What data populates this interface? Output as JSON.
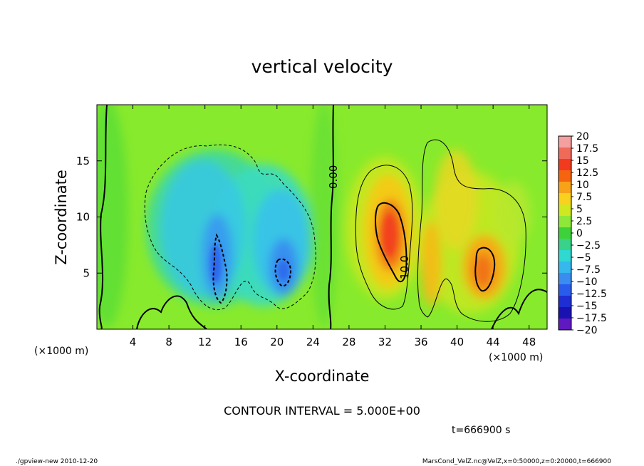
{
  "chart_data": {
    "type": "heatmap",
    "title": "vertical velocity",
    "xlabel": "X-coordinate",
    "ylabel": "Z-coordinate",
    "x_unit": "(×1000 m)",
    "x_unit_right": "(×1000 m)",
    "xlim": [
      0,
      50
    ],
    "ylim": [
      0,
      20
    ],
    "x_ticks": [
      "4",
      "8",
      "12",
      "16",
      "20",
      "24",
      "28",
      "32",
      "36",
      "40",
      "44",
      "48"
    ],
    "y_ticks": [
      "5",
      "10",
      "15"
    ],
    "colorbar_labels": [
      "20",
      "17.5",
      "15",
      "12.5",
      "10",
      "7.5",
      "5",
      "2.5",
      "0",
      "−2.5",
      "−5",
      "−7.5",
      "−10",
      "−12.5",
      "−15",
      "−17.5",
      "−20"
    ],
    "colorbar_colors": [
      "#f5a0a0",
      "#f06a5a",
      "#f23a1e",
      "#f66410",
      "#f8a21a",
      "#f8d21e",
      "#cfe820",
      "#8ee83a",
      "#3ed23a",
      "#38d28a",
      "#30d8d2",
      "#34b8ee",
      "#3a8cf0",
      "#2a5cec",
      "#1e2ed2",
      "#1a12b0",
      "#6018c0"
    ],
    "contour_labels": [
      "0.00",
      "10.0"
    ],
    "contour_interval_text": "CONTOUR INTERVAL = 5.000E+00",
    "time_text": "t=666900 s",
    "features": [
      {
        "kind": "downdraft",
        "x": 13.5,
        "z": 6.5,
        "value": -10
      },
      {
        "kind": "downdraft",
        "x": 20.8,
        "z": 5.3,
        "value": -10
      },
      {
        "kind": "updraft",
        "x": 32.5,
        "z": 8.5,
        "value": 12.5
      },
      {
        "kind": "updraft",
        "x": 43.5,
        "z": 5.3,
        "value": 10
      },
      {
        "kind": "updraft",
        "x": 37.0,
        "z": 5.5,
        "value": 7.5
      }
    ]
  },
  "footer": {
    "left": "./gpview-new   2010-12-20",
    "right": "MarsCond_VelZ.nc@VelZ,x=0:50000,z=0:20000,t=666900"
  }
}
